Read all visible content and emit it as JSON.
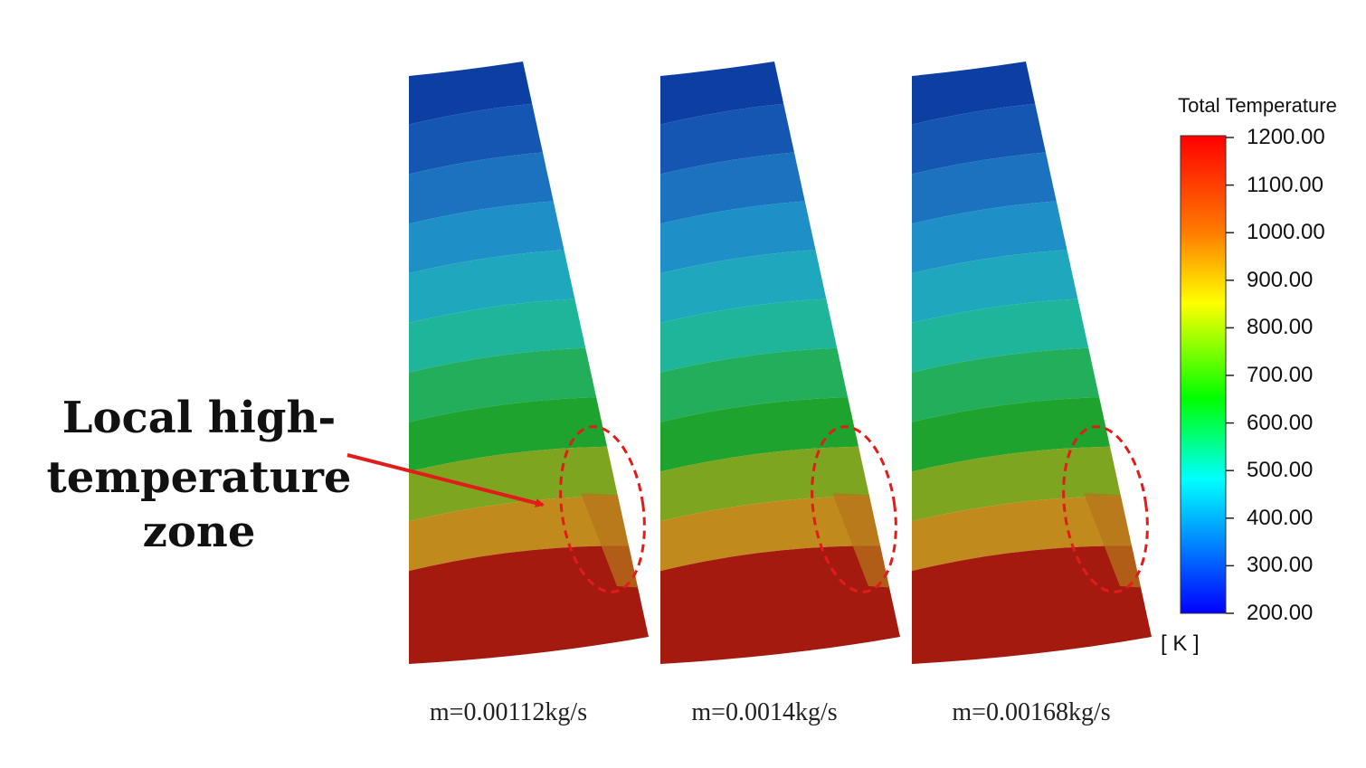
{
  "callout": {
    "line1": "Local high-",
    "line2": "temperature zone"
  },
  "panels": [
    {
      "caption": "m=0.00112kg/s"
    },
    {
      "caption": "m=0.0014kg/s"
    },
    {
      "caption": "m=0.00168kg/s"
    }
  ],
  "legend": {
    "title": "Total Temperature",
    "unit": "[ K ]",
    "ticks": [
      "1200.00",
      "1100.00",
      "1000.00",
      "900.00",
      "800.00",
      "700.00",
      "600.00",
      "500.00",
      "400.00",
      "300.00",
      "200.00"
    ]
  },
  "colors": {
    "band_colors": [
      "#0d3fa3",
      "#1556b3",
      "#1b73c0",
      "#1f8fc7",
      "#1fa8bd",
      "#1fb59a",
      "#22ae5a",
      "#1ea32e",
      "#7ea51f",
      "#c08a1c",
      "#a51a0f"
    ],
    "annotation": "#e21b1b",
    "scale": [
      "#ff0000",
      "#ff8000",
      "#ffff00",
      "#00ff00",
      "#00ffff",
      "#0000ff"
    ]
  }
}
